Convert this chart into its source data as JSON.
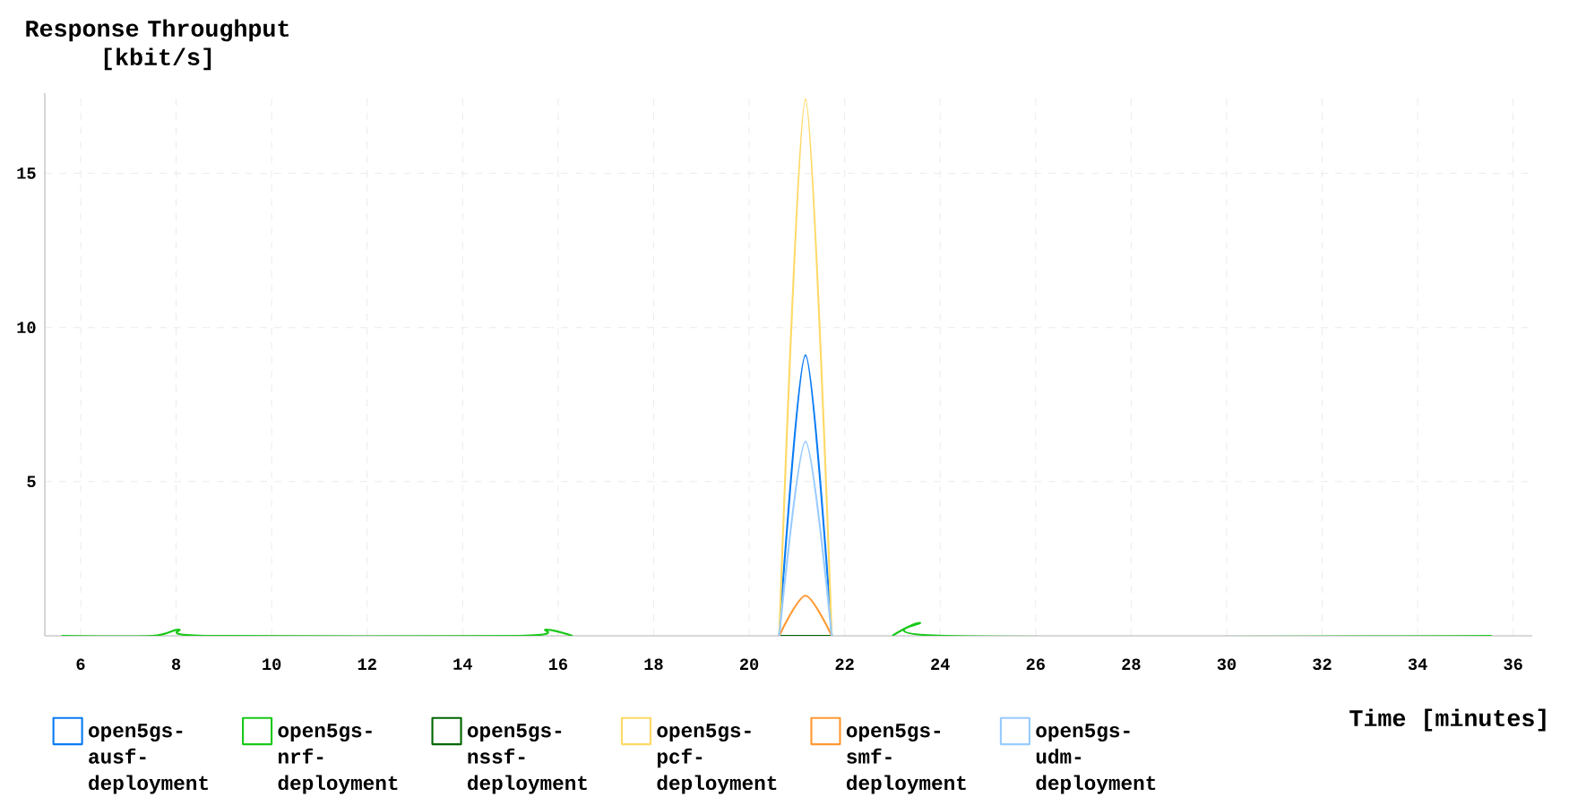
{
  "chart_data": {
    "type": "line",
    "ylabel": "Response Throughput [kbit/s]",
    "xlabel": "Time [minutes]",
    "x": [
      5.6,
      7.5,
      8.05,
      8.6,
      15.2,
      15.75,
      16.3,
      20.63,
      21.18,
      21.73,
      23.0,
      23.57,
      24.1,
      35.55
    ],
    "series": [
      {
        "name": "open5gs-ausf-deployment",
        "color": "#0a7cf5",
        "values": [
          null,
          null,
          null,
          null,
          null,
          null,
          null,
          0,
          9.1,
          0,
          null,
          null,
          null,
          null
        ]
      },
      {
        "name": "open5gs-nrf-deployment",
        "color": "#19c819",
        "values": [
          0,
          0,
          0.2,
          0,
          0,
          0.2,
          0,
          null,
          null,
          null,
          0,
          0.42,
          0,
          0
        ]
      },
      {
        "name": "open5gs-nssf-deployment",
        "color": "#006600",
        "values": [
          null,
          null,
          null,
          null,
          null,
          null,
          null,
          0,
          0,
          0,
          null,
          null,
          null,
          null
        ]
      },
      {
        "name": "open5gs-pcf-deployment",
        "color": "#ffd966",
        "values": [
          null,
          null,
          null,
          null,
          null,
          null,
          null,
          0,
          17.4,
          0,
          null,
          null,
          null,
          null
        ]
      },
      {
        "name": "open5gs-smf-deployment",
        "color": "#ff9933",
        "values": [
          null,
          null,
          null,
          null,
          null,
          null,
          null,
          0,
          1.3,
          0,
          null,
          null,
          null,
          null
        ]
      },
      {
        "name": "open5gs-udm-deployment",
        "color": "#99ccff",
        "values": [
          null,
          null,
          null,
          null,
          null,
          null,
          null,
          0,
          6.3,
          0,
          null,
          null,
          null,
          null
        ]
      }
    ],
    "xlim": [
      5.25,
      36.4
    ],
    "ylim": [
      0,
      17.6
    ],
    "xticks": [
      6,
      8,
      10,
      12,
      14,
      16,
      18,
      20,
      22,
      24,
      26,
      28,
      30,
      32,
      34,
      36
    ],
    "yticks": [
      5,
      10,
      15
    ],
    "grid": true,
    "legend": "bottom"
  }
}
